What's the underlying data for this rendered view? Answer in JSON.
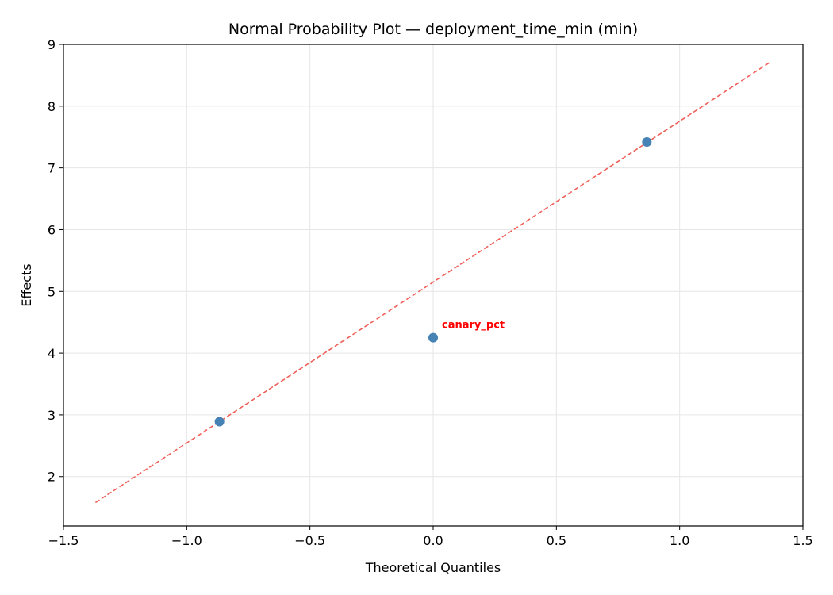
{
  "chart_data": {
    "type": "scatter",
    "title": "Normal Probability Plot — deployment_time_min (min)",
    "xlabel": "Theoretical Quantiles",
    "ylabel": "Effects",
    "xlim": [
      -1.5,
      1.5
    ],
    "ylim": [
      1.2,
      9.0
    ],
    "x_ticks": [
      -1.5,
      -1.0,
      -0.5,
      0.0,
      0.5,
      1.0,
      1.5
    ],
    "x_tick_labels": [
      "−1.5",
      "−1.0",
      "−0.5",
      "0.0",
      "0.5",
      "1.0",
      "1.5"
    ],
    "y_ticks": [
      2,
      3,
      4,
      5,
      6,
      7,
      8,
      9
    ],
    "y_tick_labels": [
      "2",
      "3",
      "4",
      "5",
      "6",
      "7",
      "8",
      "9"
    ],
    "grid": true,
    "points": [
      {
        "x": -0.867,
        "y": 2.89,
        "label": ""
      },
      {
        "x": 0.0,
        "y": 4.25,
        "label": "canary_pct"
      },
      {
        "x": 0.867,
        "y": 7.42,
        "label": ""
      }
    ],
    "reference_line": {
      "x": [
        -1.37,
        1.37
      ],
      "y": [
        1.58,
        8.72
      ],
      "style": "dashed"
    },
    "colors": {
      "point": "#4682b4",
      "reference_line": "#f0605a",
      "annotation": "#ff0000",
      "grid": "#e6e6e6"
    }
  }
}
